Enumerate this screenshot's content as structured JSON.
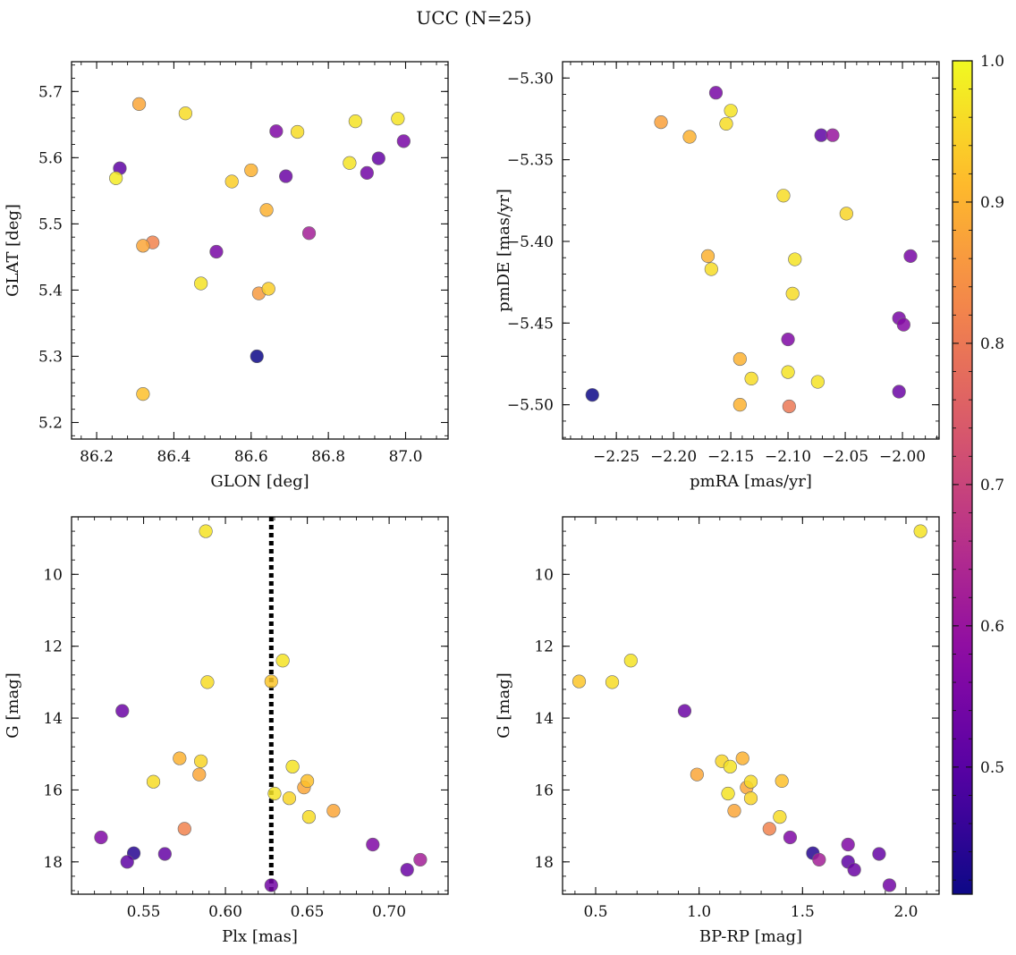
{
  "figure": {
    "title": "UCC (N=25)"
  },
  "colorbar": {
    "vmin": 0.41,
    "vmax": 1.0,
    "ticks": [
      0.5,
      0.6,
      0.7,
      0.8,
      0.9,
      1.0
    ],
    "tick_labels": [
      "0.5",
      "0.6",
      "0.7",
      "0.8",
      "0.9",
      "1.0"
    ],
    "colormap": "plasma"
  },
  "chart_data": [
    {
      "type": "scatter",
      "xlabel": "GLON [deg]",
      "ylabel": "GLAT [deg]",
      "xlim": [
        86.135,
        87.11
      ],
      "ylim": [
        5.175,
        5.745
      ],
      "y_inverted": false,
      "xticks": [
        86.2,
        86.4,
        86.6,
        86.8,
        87.0
      ],
      "xtick_labels": [
        "86.2",
        "86.4",
        "86.6",
        "86.8",
        "87.0"
      ],
      "yticks": [
        5.2,
        5.3,
        5.4,
        5.5,
        5.6,
        5.7
      ],
      "ytick_labels": [
        "5.2",
        "5.3",
        "5.4",
        "5.5",
        "5.6",
        "5.7"
      ],
      "points": [
        {
          "x": 86.31,
          "y": 5.681,
          "c": 0.88
        },
        {
          "x": 86.43,
          "y": 5.667,
          "c": 0.96
        },
        {
          "x": 86.26,
          "y": 5.584,
          "c": 0.51
        },
        {
          "x": 86.25,
          "y": 5.569,
          "c": 0.98
        },
        {
          "x": 86.32,
          "y": 5.467,
          "c": 0.88
        },
        {
          "x": 86.345,
          "y": 5.472,
          "c": 0.82
        },
        {
          "x": 86.32,
          "y": 5.243,
          "c": 0.92
        },
        {
          "x": 86.47,
          "y": 5.41,
          "c": 0.97
        },
        {
          "x": 86.51,
          "y": 5.458,
          "c": 0.55
        },
        {
          "x": 86.55,
          "y": 5.564,
          "c": 0.94
        },
        {
          "x": 86.6,
          "y": 5.581,
          "c": 0.9
        },
        {
          "x": 86.615,
          "y": 5.3,
          "c": 0.41
        },
        {
          "x": 86.62,
          "y": 5.395,
          "c": 0.86
        },
        {
          "x": 86.64,
          "y": 5.521,
          "c": 0.9
        },
        {
          "x": 86.645,
          "y": 5.402,
          "c": 0.94
        },
        {
          "x": 86.665,
          "y": 5.64,
          "c": 0.56
        },
        {
          "x": 86.69,
          "y": 5.572,
          "c": 0.53
        },
        {
          "x": 86.72,
          "y": 5.639,
          "c": 0.96
        },
        {
          "x": 86.75,
          "y": 5.486,
          "c": 0.62
        },
        {
          "x": 86.855,
          "y": 5.592,
          "c": 0.97
        },
        {
          "x": 86.87,
          "y": 5.655,
          "c": 0.97
        },
        {
          "x": 86.9,
          "y": 5.577,
          "c": 0.54
        },
        {
          "x": 86.93,
          "y": 5.599,
          "c": 0.52
        },
        {
          "x": 86.98,
          "y": 5.659,
          "c": 0.97
        },
        {
          "x": 86.995,
          "y": 5.625,
          "c": 0.55
        }
      ]
    },
    {
      "type": "scatter",
      "xlabel": "pmRA [mas/yr]",
      "ylabel": "pmDE [mas/yr]",
      "xlim": [
        -2.297,
        -1.968
      ],
      "ylim": [
        -5.521,
        -5.29
      ],
      "y_inverted": false,
      "xticks": [
        -2.25,
        -2.2,
        -2.15,
        -2.1,
        -2.05,
        -2.0
      ],
      "xtick_labels": [
        "−2.25",
        "−2.20",
        "−2.15",
        "−2.10",
        "−2.05",
        "−2.00"
      ],
      "yticks": [
        -5.5,
        -5.45,
        -5.4,
        -5.35,
        -5.3
      ],
      "ytick_labels": [
        "−5.50",
        "−5.45",
        "−5.40",
        "−5.35",
        "−5.30"
      ],
      "points": [
        {
          "x": -2.163,
          "y": -5.309,
          "c": 0.55
        },
        {
          "x": -2.15,
          "y": -5.32,
          "c": 0.97
        },
        {
          "x": -2.154,
          "y": -5.328,
          "c": 0.96
        },
        {
          "x": -2.211,
          "y": -5.327,
          "c": 0.87
        },
        {
          "x": -2.186,
          "y": -5.336,
          "c": 0.9
        },
        {
          "x": -2.071,
          "y": -5.335,
          "c": 0.51
        },
        {
          "x": -2.061,
          "y": -5.335,
          "c": 0.6
        },
        {
          "x": -2.104,
          "y": -5.372,
          "c": 0.96
        },
        {
          "x": -2.049,
          "y": -5.383,
          "c": 0.95
        },
        {
          "x": -2.17,
          "y": -5.409,
          "c": 0.9
        },
        {
          "x": -2.167,
          "y": -5.417,
          "c": 0.96
        },
        {
          "x": -2.094,
          "y": -5.411,
          "c": 0.97
        },
        {
          "x": -2.096,
          "y": -5.432,
          "c": 0.96
        },
        {
          "x": -1.993,
          "y": -5.409,
          "c": 0.55
        },
        {
          "x": -2.003,
          "y": -5.447,
          "c": 0.55
        },
        {
          "x": -1.999,
          "y": -5.451,
          "c": 0.57
        },
        {
          "x": -2.1,
          "y": -5.46,
          "c": 0.56
        },
        {
          "x": -2.142,
          "y": -5.472,
          "c": 0.9
        },
        {
          "x": -2.1,
          "y": -5.48,
          "c": 0.97
        },
        {
          "x": -2.132,
          "y": -5.484,
          "c": 0.96
        },
        {
          "x": -2.074,
          "y": -5.486,
          "c": 0.97
        },
        {
          "x": -2.003,
          "y": -5.492,
          "c": 0.53
        },
        {
          "x": -2.271,
          "y": -5.494,
          "c": 0.41
        },
        {
          "x": -2.142,
          "y": -5.5,
          "c": 0.9
        },
        {
          "x": -2.099,
          "y": -5.501,
          "c": 0.8
        }
      ]
    },
    {
      "type": "scatter",
      "xlabel": "Plx [mas]",
      "ylabel": "G [mag]",
      "xlim": [
        0.506,
        0.736
      ],
      "ylim": [
        18.9,
        8.4
      ],
      "y_inverted": true,
      "xticks": [
        0.55,
        0.6,
        0.65,
        0.7
      ],
      "xtick_labels": [
        "0.55",
        "0.60",
        "0.65",
        "0.70"
      ],
      "yticks": [
        10,
        12,
        14,
        16,
        18
      ],
      "ytick_labels": [
        "10",
        "12",
        "14",
        "16",
        "18"
      ],
      "vline": {
        "x": 0.628,
        "style": "dotted"
      },
      "points": [
        {
          "x": 0.588,
          "y": 8.8,
          "c": 0.97
        },
        {
          "x": 0.635,
          "y": 12.4,
          "c": 0.97
        },
        {
          "x": 0.589,
          "y": 13.0,
          "c": 0.96
        },
        {
          "x": 0.628,
          "y": 12.98,
          "c": 0.93
        },
        {
          "x": 0.537,
          "y": 13.8,
          "c": 0.53
        },
        {
          "x": 0.572,
          "y": 15.12,
          "c": 0.9
        },
        {
          "x": 0.585,
          "y": 15.2,
          "c": 0.95
        },
        {
          "x": 0.641,
          "y": 15.35,
          "c": 0.97
        },
        {
          "x": 0.584,
          "y": 15.57,
          "c": 0.88
        },
        {
          "x": 0.556,
          "y": 15.77,
          "c": 0.96
        },
        {
          "x": 0.65,
          "y": 15.75,
          "c": 0.92
        },
        {
          "x": 0.648,
          "y": 15.93,
          "c": 0.88
        },
        {
          "x": 0.63,
          "y": 16.1,
          "c": 0.97
        },
        {
          "x": 0.639,
          "y": 16.23,
          "c": 0.95
        },
        {
          "x": 0.666,
          "y": 16.58,
          "c": 0.88
        },
        {
          "x": 0.651,
          "y": 16.75,
          "c": 0.96
        },
        {
          "x": 0.575,
          "y": 17.08,
          "c": 0.82
        },
        {
          "x": 0.524,
          "y": 17.32,
          "c": 0.56
        },
        {
          "x": 0.69,
          "y": 17.52,
          "c": 0.56
        },
        {
          "x": 0.544,
          "y": 17.76,
          "c": 0.44
        },
        {
          "x": 0.563,
          "y": 17.78,
          "c": 0.52
        },
        {
          "x": 0.54,
          "y": 18.0,
          "c": 0.51
        },
        {
          "x": 0.719,
          "y": 17.94,
          "c": 0.62
        },
        {
          "x": 0.711,
          "y": 18.22,
          "c": 0.53
        },
        {
          "x": 0.628,
          "y": 18.65,
          "c": 0.54
        }
      ]
    },
    {
      "type": "scatter",
      "xlabel": "BP-RP [mag]",
      "ylabel": "G [mag]",
      "xlim": [
        0.34,
        2.16
      ],
      "ylim": [
        18.9,
        8.4
      ],
      "y_inverted": true,
      "xticks": [
        0.5,
        1.0,
        1.5,
        2.0
      ],
      "xtick_labels": [
        "0.5",
        "1.0",
        "1.5",
        "2.0"
      ],
      "yticks": [
        10,
        12,
        14,
        16,
        18
      ],
      "ytick_labels": [
        "10",
        "12",
        "14",
        "16",
        "18"
      ],
      "points": [
        {
          "x": 2.07,
          "y": 8.8,
          "c": 0.97
        },
        {
          "x": 0.42,
          "y": 12.98,
          "c": 0.93
        },
        {
          "x": 0.58,
          "y": 13.0,
          "c": 0.96
        },
        {
          "x": 0.67,
          "y": 12.4,
          "c": 0.97
        },
        {
          "x": 0.93,
          "y": 13.8,
          "c": 0.53
        },
        {
          "x": 0.99,
          "y": 15.57,
          "c": 0.88
        },
        {
          "x": 1.11,
          "y": 15.2,
          "c": 0.95
        },
        {
          "x": 1.15,
          "y": 15.35,
          "c": 0.97
        },
        {
          "x": 1.21,
          "y": 15.12,
          "c": 0.9
        },
        {
          "x": 1.23,
          "y": 15.93,
          "c": 0.88
        },
        {
          "x": 1.25,
          "y": 15.77,
          "c": 0.96
        },
        {
          "x": 1.14,
          "y": 16.1,
          "c": 0.97
        },
        {
          "x": 1.25,
          "y": 16.23,
          "c": 0.95
        },
        {
          "x": 1.17,
          "y": 16.58,
          "c": 0.88
        },
        {
          "x": 1.4,
          "y": 15.75,
          "c": 0.92
        },
        {
          "x": 1.39,
          "y": 16.75,
          "c": 0.96
        },
        {
          "x": 1.34,
          "y": 17.08,
          "c": 0.82
        },
        {
          "x": 1.44,
          "y": 17.32,
          "c": 0.56
        },
        {
          "x": 1.55,
          "y": 17.76,
          "c": 0.44
        },
        {
          "x": 1.58,
          "y": 17.94,
          "c": 0.62
        },
        {
          "x": 1.72,
          "y": 17.52,
          "c": 0.56
        },
        {
          "x": 1.72,
          "y": 18.0,
          "c": 0.51
        },
        {
          "x": 1.75,
          "y": 18.22,
          "c": 0.53
        },
        {
          "x": 1.87,
          "y": 17.78,
          "c": 0.52
        },
        {
          "x": 1.92,
          "y": 18.65,
          "c": 0.54
        }
      ]
    }
  ]
}
